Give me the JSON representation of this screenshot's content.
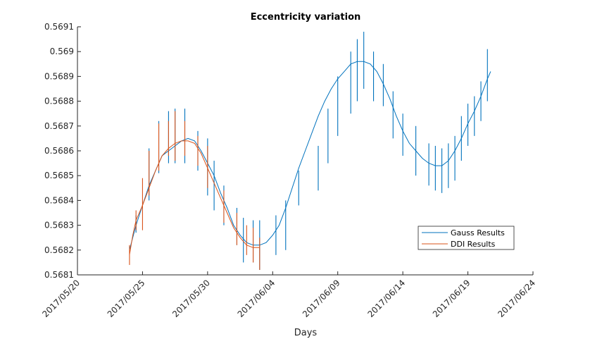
{
  "chart_data": {
    "type": "line",
    "title": "Eccentricity variation",
    "xlabel": "Days",
    "ylabel": "",
    "x_type": "date",
    "xlim": [
      "2017-05-20",
      "2017-06-24"
    ],
    "ylim": [
      0.5681,
      0.5691
    ],
    "x_ticks": [
      "2017/05/20",
      "2017/05/25",
      "2017/05/30",
      "2017/06/04",
      "2017/06/09",
      "2017/06/14",
      "2017/06/19",
      "2017/06/24"
    ],
    "y_ticks": [
      "0.5681",
      "0.5682",
      "0.5683",
      "0.5684",
      "0.5685",
      "0.5686",
      "0.5687",
      "0.5688",
      "0.5689",
      "0.569",
      "0.5691"
    ],
    "grid": false,
    "legend_position": "bottom-right",
    "series": [
      {
        "name": "Gauss Results",
        "color": "#0072BD",
        "points": [
          [
            "2017-05-24",
            0.5682
          ],
          [
            "2017-05-24 12:00",
            0.5683
          ],
          [
            "2017-05-25",
            0.56838
          ],
          [
            "2017-05-25 12:00",
            0.56846
          ],
          [
            "2017-05-26",
            0.56852
          ],
          [
            "2017-05-26 12:00",
            0.56858
          ],
          [
            "2017-05-27",
            0.5686
          ],
          [
            "2017-05-27 12:00",
            0.56862
          ],
          [
            "2017-05-28",
            0.56864
          ],
          [
            "2017-05-28 12:00",
            0.56865
          ],
          [
            "2017-05-29",
            0.56864
          ],
          [
            "2017-05-29 12:00",
            0.5686
          ],
          [
            "2017-05-30",
            0.56855
          ],
          [
            "2017-05-30 12:00",
            0.5685
          ],
          [
            "2017-05-31",
            0.56843
          ],
          [
            "2017-05-31 12:00",
            0.56837
          ],
          [
            "2017-06-01",
            0.5683
          ],
          [
            "2017-06-01 12:00",
            0.56826
          ],
          [
            "2017-06-02",
            0.56823
          ],
          [
            "2017-06-02 12:00",
            0.56822
          ],
          [
            "2017-06-03",
            0.56822
          ],
          [
            "2017-06-03 12:00",
            0.56823
          ],
          [
            "2017-06-04",
            0.56826
          ],
          [
            "2017-06-04 12:00",
            0.5683
          ],
          [
            "2017-06-05",
            0.56837
          ],
          [
            "2017-06-05 12:00",
            0.56845
          ],
          [
            "2017-06-06",
            0.56853
          ],
          [
            "2017-06-06 12:00",
            0.5686
          ],
          [
            "2017-06-07",
            0.56867
          ],
          [
            "2017-06-07 12:00",
            0.56874
          ],
          [
            "2017-06-08",
            0.5688
          ],
          [
            "2017-06-08 12:00",
            0.56885
          ],
          [
            "2017-06-09",
            0.56889
          ],
          [
            "2017-06-09 12:00",
            0.56892
          ],
          [
            "2017-06-10",
            0.56895
          ],
          [
            "2017-06-10 12:00",
            0.56896
          ],
          [
            "2017-06-11",
            0.56896
          ],
          [
            "2017-06-11 12:00",
            0.56895
          ],
          [
            "2017-06-12",
            0.56892
          ],
          [
            "2017-06-12 12:00",
            0.56887
          ],
          [
            "2017-06-13",
            0.56881
          ],
          [
            "2017-06-13 12:00",
            0.56874
          ],
          [
            "2017-06-14",
            0.56868
          ],
          [
            "2017-06-14 12:00",
            0.56863
          ],
          [
            "2017-06-15",
            0.5686
          ],
          [
            "2017-06-15 12:00",
            0.56857
          ],
          [
            "2017-06-16",
            0.56855
          ],
          [
            "2017-06-16 12:00",
            0.56854
          ],
          [
            "2017-06-17",
            0.56854
          ],
          [
            "2017-06-17 12:00",
            0.56856
          ],
          [
            "2017-06-18",
            0.5686
          ],
          [
            "2017-06-18 12:00",
            0.56865
          ],
          [
            "2017-06-19",
            0.56871
          ],
          [
            "2017-06-19 12:00",
            0.56876
          ],
          [
            "2017-06-20",
            0.56882
          ],
          [
            "2017-06-20 12:00",
            0.56889
          ],
          [
            "2017-06-20 18:00",
            0.56892
          ]
        ],
        "spikes": [
          [
            "2017-05-24 12:00",
            0.56827,
            0.56834
          ],
          [
            "2017-05-25 12:00",
            0.5684,
            0.56861
          ],
          [
            "2017-05-26 06:00",
            0.56851,
            0.56872
          ],
          [
            "2017-05-27",
            0.56855,
            0.56876
          ],
          [
            "2017-05-27 12:00",
            0.56855,
            0.56877
          ],
          [
            "2017-05-28 06:00",
            0.56855,
            0.56877
          ],
          [
            "2017-05-29 06:00",
            0.56852,
            0.56868
          ],
          [
            "2017-05-30",
            0.56842,
            0.56865
          ],
          [
            "2017-05-30 12:00",
            0.56836,
            0.56856
          ],
          [
            "2017-05-31 06:00",
            0.5683,
            0.56846
          ],
          [
            "2017-06-01 06:00",
            0.56822,
            0.56837
          ],
          [
            "2017-06-01 18:00",
            0.56815,
            0.56833
          ],
          [
            "2017-06-02 12:00",
            0.56815,
            0.56832
          ],
          [
            "2017-06-03",
            0.56812,
            0.56832
          ],
          [
            "2017-06-04 06:00",
            0.56818,
            0.56834
          ],
          [
            "2017-06-05",
            0.5682,
            0.5684
          ],
          [
            "2017-06-06",
            0.56838,
            0.56852
          ],
          [
            "2017-06-07 12:00",
            0.56844,
            0.56862
          ],
          [
            "2017-06-08 06:00",
            0.56855,
            0.56877
          ],
          [
            "2017-06-09",
            0.56866,
            0.5689
          ],
          [
            "2017-06-10",
            0.56875,
            0.569
          ],
          [
            "2017-06-10 12:00",
            0.5688,
            0.56905
          ],
          [
            "2017-06-11",
            0.56885,
            0.56908
          ],
          [
            "2017-06-11 18:00",
            0.5688,
            0.569
          ],
          [
            "2017-06-12 12:00",
            0.56878,
            0.56895
          ],
          [
            "2017-06-13 06:00",
            0.56865,
            0.56884
          ],
          [
            "2017-06-14",
            0.56858,
            0.56875
          ],
          [
            "2017-06-15",
            0.5685,
            0.5687
          ],
          [
            "2017-06-16",
            0.56846,
            0.56863
          ],
          [
            "2017-06-16 12:00",
            0.56844,
            0.56862
          ],
          [
            "2017-06-17",
            0.56843,
            0.56861
          ],
          [
            "2017-06-17 12:00",
            0.56845,
            0.56863
          ],
          [
            "2017-06-18",
            0.56848,
            0.56866
          ],
          [
            "2017-06-18 12:00",
            0.56856,
            0.56874
          ],
          [
            "2017-06-19",
            0.56862,
            0.56879
          ],
          [
            "2017-06-19 12:00",
            0.56866,
            0.56882
          ],
          [
            "2017-06-20",
            0.56872,
            0.56888
          ],
          [
            "2017-06-20 12:00",
            0.5688,
            0.56901
          ]
        ]
      },
      {
        "name": "DDI Results",
        "color": "#D95319",
        "points": [
          [
            "2017-05-24",
            0.56818
          ],
          [
            "2017-05-24 06:00",
            0.56826
          ],
          [
            "2017-05-24 12:00",
            0.56832
          ],
          [
            "2017-05-25",
            0.56838
          ],
          [
            "2017-05-25 12:00",
            0.56845
          ],
          [
            "2017-05-26",
            0.56852
          ],
          [
            "2017-05-26 12:00",
            0.56858
          ],
          [
            "2017-05-27",
            0.56861
          ],
          [
            "2017-05-27 12:00",
            0.56863
          ],
          [
            "2017-05-28",
            0.56864
          ],
          [
            "2017-05-28 12:00",
            0.56864
          ],
          [
            "2017-05-29",
            0.56863
          ],
          [
            "2017-05-29 12:00",
            0.56859
          ],
          [
            "2017-05-30",
            0.56853
          ],
          [
            "2017-05-30 12:00",
            0.56847
          ],
          [
            "2017-05-31",
            0.56841
          ],
          [
            "2017-05-31 12:00",
            0.56835
          ],
          [
            "2017-06-01",
            0.56829
          ],
          [
            "2017-06-01 12:00",
            0.56825
          ],
          [
            "2017-06-02",
            0.56822
          ],
          [
            "2017-06-02 12:00",
            0.56821
          ],
          [
            "2017-06-03",
            0.56821
          ]
        ],
        "spikes": [
          [
            "2017-05-24",
            0.56814,
            0.56822
          ],
          [
            "2017-05-24 12:00",
            0.56828,
            0.56836
          ],
          [
            "2017-05-25",
            0.56828,
            0.56849
          ],
          [
            "2017-05-25 12:00",
            0.56842,
            0.5686
          ],
          [
            "2017-05-26 06:00",
            0.56852,
            0.56871
          ],
          [
            "2017-05-27",
            0.56858,
            0.56872
          ],
          [
            "2017-05-27 12:00",
            0.56856,
            0.56876
          ],
          [
            "2017-05-28 06:00",
            0.56858,
            0.56872
          ],
          [
            "2017-05-29 06:00",
            0.56854,
            0.56866
          ],
          [
            "2017-05-30",
            0.56845,
            0.56862
          ],
          [
            "2017-05-31 06:00",
            0.56831,
            0.56844
          ],
          [
            "2017-06-01 06:00",
            0.56822,
            0.56835
          ],
          [
            "2017-06-02",
            0.56818,
            0.5683
          ],
          [
            "2017-06-02 12:00",
            0.56815,
            0.56829
          ],
          [
            "2017-06-03",
            0.56812,
            0.56825
          ]
        ]
      }
    ]
  }
}
